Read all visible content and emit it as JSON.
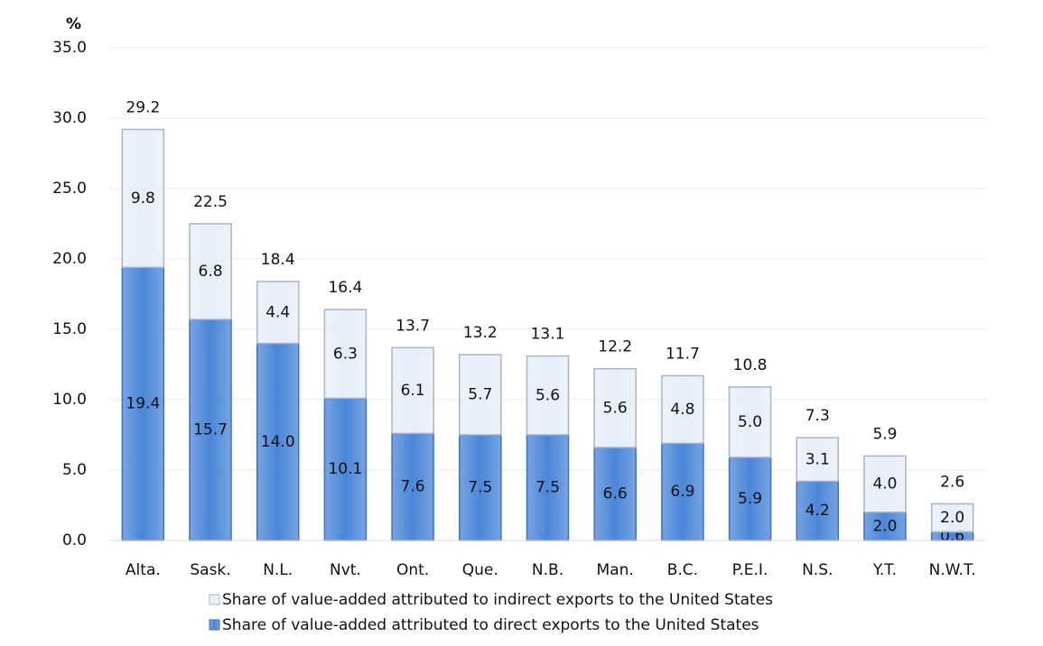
{
  "chart_data": {
    "type": "stacked_bar",
    "y_label": "%",
    "categories": [
      "Alta.",
      "Sask.",
      "N.L.",
      "Nvt.",
      "Ont.",
      "Que.",
      "N.B.",
      "Man.",
      "B.C.",
      "P.E.I.",
      "N.S.",
      "Y.T.",
      "N.W.T."
    ],
    "series": [
      {
        "name": "Share of value-added attributed to direct exports to the United States",
        "color": "#4a86d8",
        "values": [
          19.4,
          15.7,
          14.0,
          10.1,
          7.6,
          7.5,
          7.5,
          6.6,
          6.9,
          5.9,
          4.2,
          2.0,
          0.6
        ],
        "value_labels": [
          "19.4",
          "15.7",
          "14.0",
          "10.1",
          "7.6",
          "7.5",
          "7.5",
          "6.6",
          "6.9",
          "5.9",
          "4.2",
          "2.0",
          "0.6"
        ]
      },
      {
        "name": "Share of value-added attributed to indirect exports to the United States",
        "color": "#e6eef9",
        "values": [
          9.8,
          6.8,
          4.4,
          6.3,
          6.1,
          5.7,
          5.6,
          5.6,
          4.8,
          5.0,
          3.1,
          4.0,
          2.0
        ],
        "value_labels": [
          "9.8",
          "6.8",
          "4.4",
          "6.3",
          "6.1",
          "5.7",
          "5.6",
          "5.6",
          "4.8",
          "5.0",
          "3.1",
          "4.0",
          "2.0"
        ]
      }
    ],
    "totals": [
      29.2,
      22.5,
      18.4,
      16.4,
      13.7,
      13.2,
      13.1,
      12.2,
      11.7,
      10.8,
      7.3,
      5.9,
      2.6
    ],
    "ylim": [
      0,
      35
    ],
    "yticks": [
      {
        "value": 0,
        "label": "0.0"
      },
      {
        "value": 5,
        "label": "5.0"
      },
      {
        "value": 10,
        "label": "10.0"
      },
      {
        "value": 15,
        "label": "15.0"
      },
      {
        "value": 20,
        "label": "20.0"
      },
      {
        "value": 25,
        "label": "25.0"
      },
      {
        "value": 30,
        "label": "30.0"
      },
      {
        "value": 35,
        "label": "35.0"
      }
    ],
    "grid": true
  }
}
